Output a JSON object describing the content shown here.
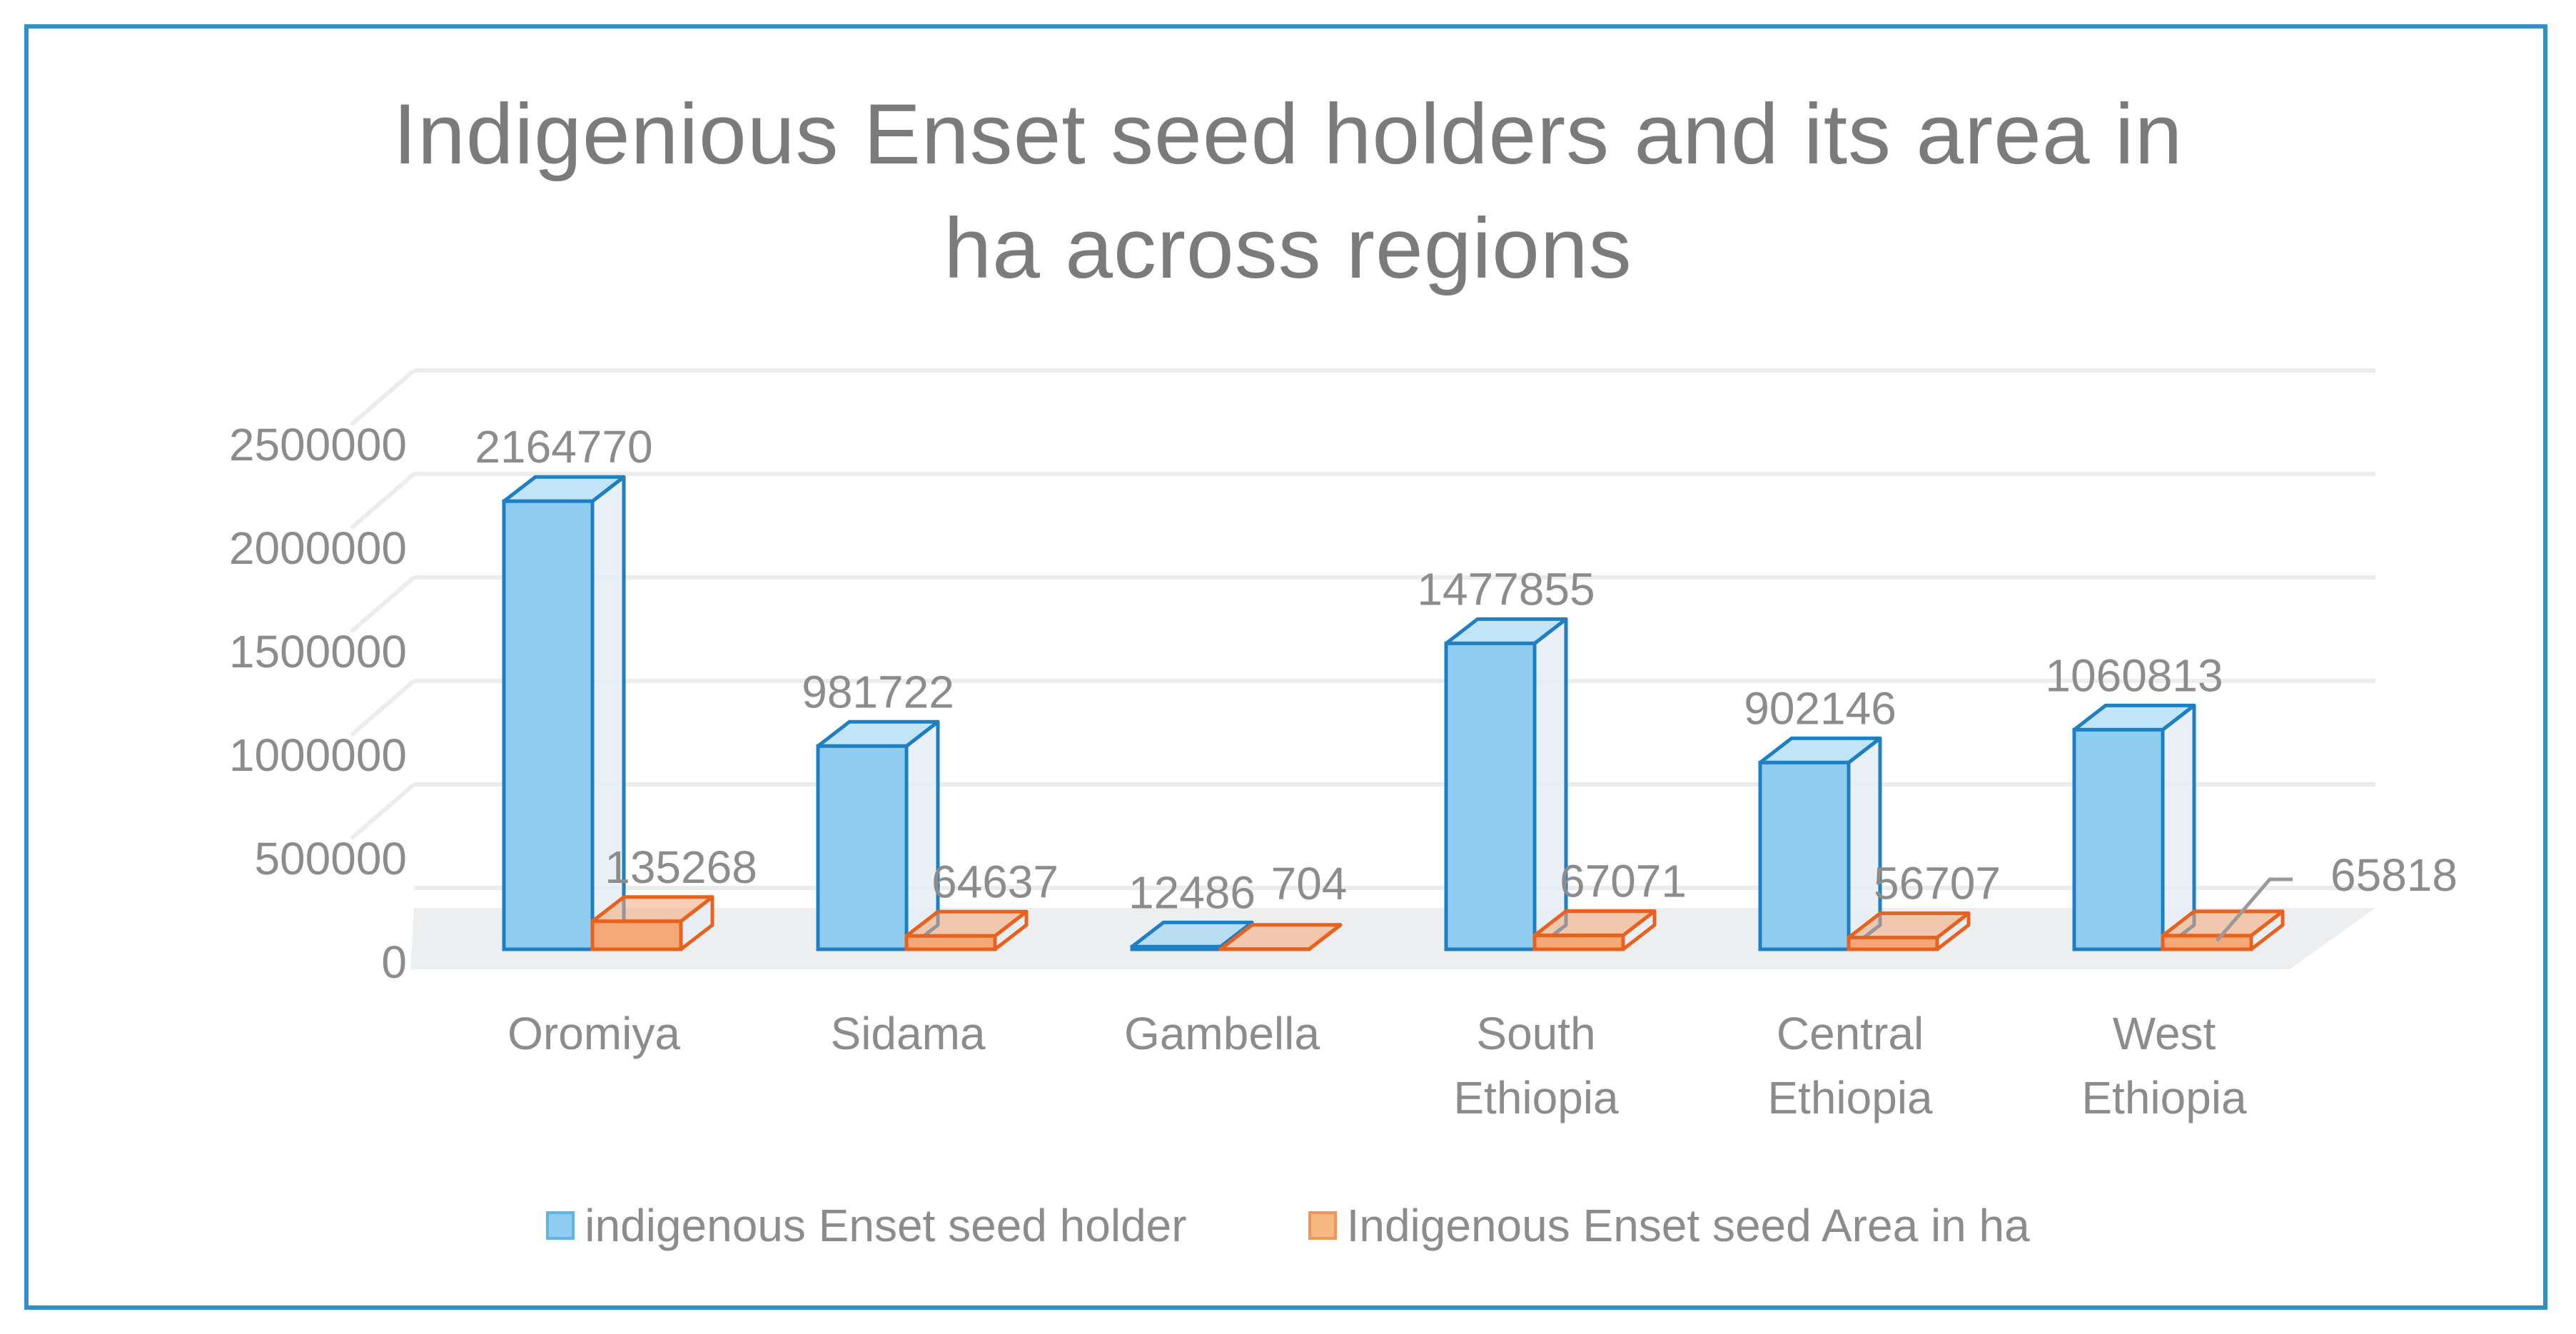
{
  "chart_data": {
    "type": "bar",
    "title_line1": "Indigenious Enset seed holders and its area in",
    "title_line2": "ha across regions",
    "categories": [
      "Oromiya",
      "Sidama",
      "Gambella",
      "South Ethiopia",
      "Central Ethiopia",
      "West Ethiopia"
    ],
    "category_lines": [
      [
        "Oromiya"
      ],
      [
        "Sidama"
      ],
      [
        "Gambella"
      ],
      [
        "South",
        "Ethiopia"
      ],
      [
        "Central",
        "Ethiopia"
      ],
      [
        "West",
        "Ethiopia"
      ]
    ],
    "series": [
      {
        "name": "indigenous Enset seed holder",
        "values": [
          2164770,
          981722,
          12486,
          1477855,
          902146,
          1060813
        ],
        "color": "#1F7FC3",
        "fill": "#8ECDF0"
      },
      {
        "name": "Indigenous Enset seed Area in ha",
        "values": [
          135268,
          64637,
          704,
          67071,
          56707,
          65818
        ],
        "color": "#E8611F",
        "fill": "#F5A878"
      }
    ],
    "yticks": [
      0,
      500000,
      1000000,
      1500000,
      2000000,
      2500000
    ],
    "ylim": [
      0,
      2500000
    ],
    "grid": true,
    "legend_position": "bottom",
    "three_d": true
  }
}
